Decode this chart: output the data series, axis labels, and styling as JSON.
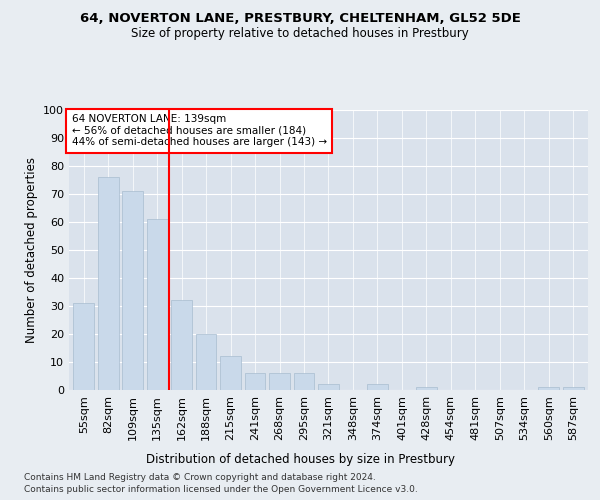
{
  "title1": "64, NOVERTON LANE, PRESTBURY, CHELTENHAM, GL52 5DE",
  "title2": "Size of property relative to detached houses in Prestbury",
  "xlabel": "Distribution of detached houses by size in Prestbury",
  "ylabel": "Number of detached properties",
  "categories": [
    "55sqm",
    "82sqm",
    "109sqm",
    "135sqm",
    "162sqm",
    "188sqm",
    "215sqm",
    "241sqm",
    "268sqm",
    "295sqm",
    "321sqm",
    "348sqm",
    "374sqm",
    "401sqm",
    "428sqm",
    "454sqm",
    "481sqm",
    "507sqm",
    "534sqm",
    "560sqm",
    "587sqm"
  ],
  "values": [
    31,
    76,
    71,
    61,
    32,
    20,
    12,
    6,
    6,
    6,
    2,
    0,
    2,
    0,
    1,
    0,
    0,
    0,
    0,
    1,
    1
  ],
  "bar_color": "#c9d9ea",
  "bar_edge_color": "#a8bdd0",
  "vline_x": 3.5,
  "vline_color": "red",
  "annotation_title": "64 NOVERTON LANE: 139sqm",
  "annotation_line1": "← 56% of detached houses are smaller (184)",
  "annotation_line2": "44% of semi-detached houses are larger (143) →",
  "box_color": "red",
  "ylim": [
    0,
    100
  ],
  "yticks": [
    0,
    10,
    20,
    30,
    40,
    50,
    60,
    70,
    80,
    90,
    100
  ],
  "background_color": "#e8edf2",
  "plot_bg_color": "#dae2ec",
  "footer1": "Contains HM Land Registry data © Crown copyright and database right 2024.",
  "footer2": "Contains public sector information licensed under the Open Government Licence v3.0."
}
